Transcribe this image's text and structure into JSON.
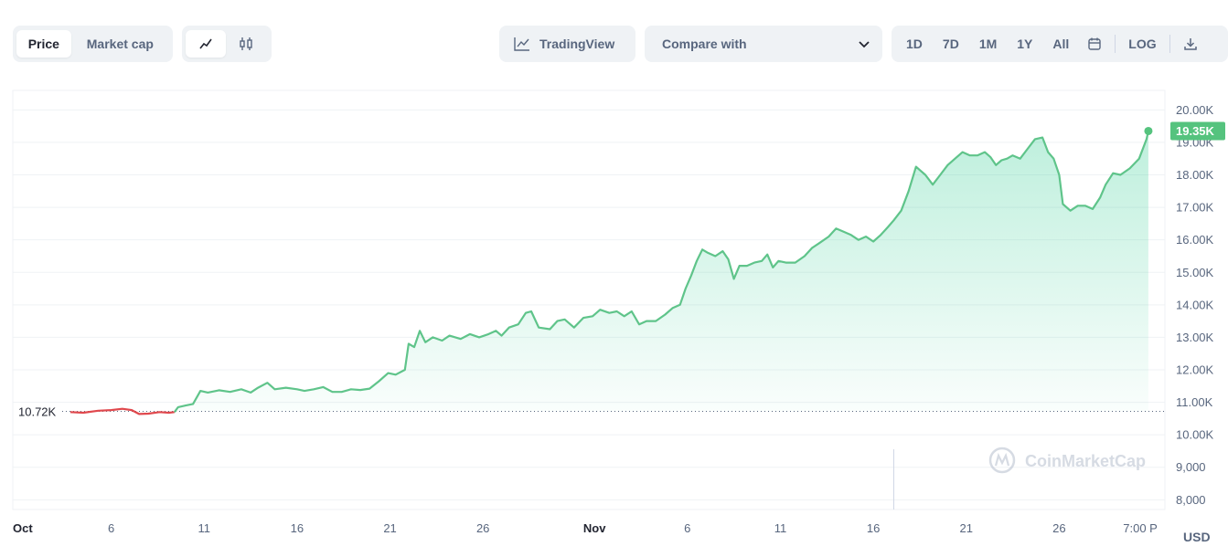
{
  "toolbar": {
    "view_tabs": [
      "Price",
      "Market cap"
    ],
    "tradingview_label": "TradingView",
    "compare_label": "Compare with",
    "ranges": [
      "1D",
      "7D",
      "1M",
      "1Y",
      "All"
    ],
    "log_label": "LOG"
  },
  "watermark": "CoinMarketCap",
  "colors": {
    "up": "#16c784",
    "line_up": "#5fc48a",
    "line_down": "#e0484d",
    "price_tag": "#55c37e"
  },
  "chart_data": {
    "type": "area",
    "currency_label": "USD",
    "start_price_label": "10.72K",
    "current_price_label": "19.35K",
    "start_price": 10720,
    "current_price": 19350,
    "ylim": [
      7700,
      20600
    ],
    "y_ticks": [
      {
        "value": 20000,
        "label": "20.00K"
      },
      {
        "value": 19000,
        "label": "19.00K"
      },
      {
        "value": 18000,
        "label": "18.00K"
      },
      {
        "value": 17000,
        "label": "17.00K"
      },
      {
        "value": 16000,
        "label": "16.00K"
      },
      {
        "value": 15000,
        "label": "15.00K"
      },
      {
        "value": 14000,
        "label": "14.00K"
      },
      {
        "value": 13000,
        "label": "13.00K"
      },
      {
        "value": 12000,
        "label": "12.00K"
      },
      {
        "value": 11000,
        "label": "11.00K"
      },
      {
        "value": 10000,
        "label": "10.00K"
      },
      {
        "value": 9000,
        "label": "9,000"
      },
      {
        "value": 8000,
        "label": "8,000"
      }
    ],
    "x_ticks": [
      {
        "day": 0,
        "label": "Oct",
        "bold": true
      },
      {
        "day": 5,
        "label": "6"
      },
      {
        "day": 10,
        "label": "11"
      },
      {
        "day": 15,
        "label": "16"
      },
      {
        "day": 20,
        "label": "21"
      },
      {
        "day": 25,
        "label": "26"
      },
      {
        "day": 31,
        "label": "Nov",
        "bold": true
      },
      {
        "day": 36,
        "label": "6"
      },
      {
        "day": 41,
        "label": "11"
      },
      {
        "day": 46,
        "label": "16"
      },
      {
        "day": 51,
        "label": "21"
      },
      {
        "day": 56,
        "label": "26"
      },
      {
        "day": 60.6,
        "label": "7:00 P"
      }
    ],
    "x_domain": [
      0,
      61
    ],
    "marker_day": 47.1,
    "series": [
      {
        "points": [
          [
            2.8,
            10700
          ],
          [
            3.5,
            10680
          ],
          [
            4.3,
            10740
          ],
          [
            5.0,
            10760
          ],
          [
            5.6,
            10800
          ],
          [
            6.1,
            10760
          ],
          [
            6.5,
            10640
          ],
          [
            7.0,
            10650
          ],
          [
            7.6,
            10700
          ],
          [
            8.1,
            10680
          ],
          [
            8.4,
            10700
          ],
          [
            8.6,
            10850
          ],
          [
            9.0,
            10900
          ],
          [
            9.4,
            10950
          ],
          [
            9.8,
            11350
          ],
          [
            10.2,
            11300
          ],
          [
            10.8,
            11370
          ],
          [
            11.4,
            11320
          ],
          [
            12.0,
            11400
          ],
          [
            12.5,
            11300
          ],
          [
            12.9,
            11450
          ],
          [
            13.4,
            11600
          ],
          [
            13.8,
            11400
          ],
          [
            14.4,
            11450
          ],
          [
            15.0,
            11400
          ],
          [
            15.4,
            11350
          ],
          [
            15.9,
            11400
          ],
          [
            16.4,
            11470
          ],
          [
            16.9,
            11320
          ],
          [
            17.4,
            11320
          ],
          [
            17.9,
            11400
          ],
          [
            18.4,
            11380
          ],
          [
            18.9,
            11420
          ],
          [
            19.4,
            11650
          ],
          [
            19.9,
            11900
          ],
          [
            20.3,
            11850
          ],
          [
            20.8,
            12000
          ],
          [
            21.0,
            12800
          ],
          [
            21.3,
            12700
          ],
          [
            21.6,
            13200
          ],
          [
            21.9,
            12850
          ],
          [
            22.3,
            13000
          ],
          [
            22.8,
            12900
          ],
          [
            23.2,
            13050
          ],
          [
            23.8,
            12950
          ],
          [
            24.3,
            13100
          ],
          [
            24.8,
            13000
          ],
          [
            25.3,
            13100
          ],
          [
            25.7,
            13200
          ],
          [
            26.0,
            13050
          ],
          [
            26.4,
            13300
          ],
          [
            26.9,
            13400
          ],
          [
            27.3,
            13750
          ],
          [
            27.6,
            13800
          ],
          [
            28.0,
            13300
          ],
          [
            28.6,
            13250
          ],
          [
            29.0,
            13500
          ],
          [
            29.4,
            13550
          ],
          [
            29.9,
            13300
          ],
          [
            30.4,
            13600
          ],
          [
            30.9,
            13650
          ],
          [
            31.3,
            13850
          ],
          [
            31.8,
            13750
          ],
          [
            32.2,
            13800
          ],
          [
            32.6,
            13650
          ],
          [
            33.0,
            13800
          ],
          [
            33.4,
            13400
          ],
          [
            33.8,
            13500
          ],
          [
            34.3,
            13500
          ],
          [
            34.8,
            13700
          ],
          [
            35.2,
            13900
          ],
          [
            35.6,
            14000
          ],
          [
            35.9,
            14500
          ],
          [
            36.2,
            14900
          ],
          [
            36.5,
            15350
          ],
          [
            36.8,
            15700
          ],
          [
            37.1,
            15600
          ],
          [
            37.5,
            15500
          ],
          [
            37.9,
            15650
          ],
          [
            38.2,
            15400
          ],
          [
            38.5,
            14800
          ],
          [
            38.8,
            15200
          ],
          [
            39.2,
            15200
          ],
          [
            39.6,
            15300
          ],
          [
            40.0,
            15350
          ],
          [
            40.3,
            15550
          ],
          [
            40.6,
            15150
          ],
          [
            40.9,
            15350
          ],
          [
            41.3,
            15300
          ],
          [
            41.8,
            15300
          ],
          [
            42.3,
            15500
          ],
          [
            42.7,
            15750
          ],
          [
            43.1,
            15900
          ],
          [
            43.6,
            16100
          ],
          [
            44.0,
            16350
          ],
          [
            44.4,
            16250
          ],
          [
            44.8,
            16150
          ],
          [
            45.2,
            16000
          ],
          [
            45.6,
            16100
          ],
          [
            46.0,
            15950
          ],
          [
            46.4,
            16150
          ],
          [
            46.8,
            16400
          ],
          [
            47.1,
            16600
          ],
          [
            47.5,
            16900
          ],
          [
            47.9,
            17500
          ],
          [
            48.3,
            18250
          ],
          [
            48.5,
            18150
          ],
          [
            48.8,
            18000
          ],
          [
            49.2,
            17700
          ],
          [
            49.6,
            18000
          ],
          [
            50.0,
            18300
          ],
          [
            50.4,
            18500
          ],
          [
            50.8,
            18700
          ],
          [
            51.2,
            18600
          ],
          [
            51.6,
            18600
          ],
          [
            52.0,
            18700
          ],
          [
            52.3,
            18550
          ],
          [
            52.6,
            18300
          ],
          [
            52.9,
            18450
          ],
          [
            53.2,
            18500
          ],
          [
            53.5,
            18600
          ],
          [
            53.9,
            18500
          ],
          [
            54.3,
            18800
          ],
          [
            54.7,
            19100
          ],
          [
            55.1,
            19150
          ],
          [
            55.4,
            18700
          ],
          [
            55.7,
            18500
          ],
          [
            56.0,
            18000
          ],
          [
            56.2,
            17100
          ],
          [
            56.6,
            16900
          ],
          [
            57.0,
            17050
          ],
          [
            57.4,
            17050
          ],
          [
            57.8,
            16950
          ],
          [
            58.2,
            17300
          ],
          [
            58.5,
            17700
          ],
          [
            58.9,
            18050
          ],
          [
            59.3,
            18000
          ],
          [
            59.8,
            18200
          ],
          [
            60.3,
            18500
          ],
          [
            60.7,
            19100
          ],
          [
            60.8,
            19350
          ]
        ]
      }
    ]
  }
}
